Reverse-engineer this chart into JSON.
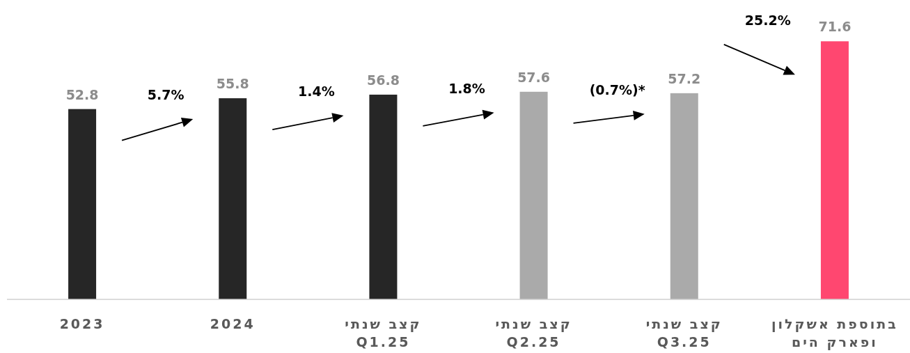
{
  "chart_data": {
    "type": "bar",
    "categories": [
      "2023",
      "2024",
      "קצב שנתי\nQ1.25",
      "קצב שנתי\nQ2.25",
      "קצב שנתי\nQ3.25",
      "בתוספת אשקלון\nופארק הים"
    ],
    "values": [
      52.8,
      55.8,
      56.8,
      57.6,
      57.2,
      71.6
    ],
    "colors": [
      "#262626",
      "#262626",
      "#262626",
      "#aaaaaa",
      "#aaaaaa",
      "#ff4770"
    ],
    "data_labels": true,
    "annotations": [
      "5.7%",
      "1.4%",
      "1.8%",
      "(0.7%)*",
      "25.2%"
    ]
  }
}
